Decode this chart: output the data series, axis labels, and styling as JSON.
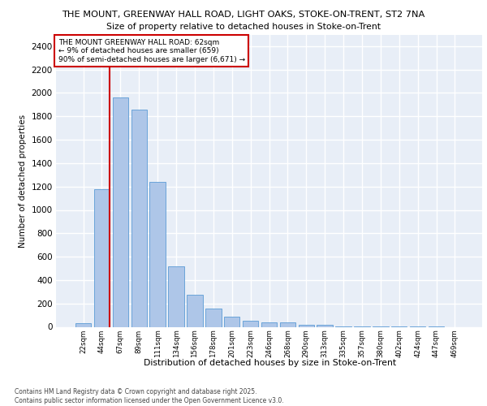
{
  "title1": "THE MOUNT, GREENWAY HALL ROAD, LIGHT OAKS, STOKE-ON-TRENT, ST2 7NA",
  "title2": "Size of property relative to detached houses in Stoke-on-Trent",
  "xlabel": "Distribution of detached houses by size in Stoke-on-Trent",
  "ylabel": "Number of detached properties",
  "bar_labels": [
    "22sqm",
    "44sqm",
    "67sqm",
    "89sqm",
    "111sqm",
    "134sqm",
    "156sqm",
    "178sqm",
    "201sqm",
    "223sqm",
    "246sqm",
    "268sqm",
    "290sqm",
    "313sqm",
    "335sqm",
    "357sqm",
    "380sqm",
    "402sqm",
    "424sqm",
    "447sqm",
    "469sqm"
  ],
  "bar_values": [
    30,
    1175,
    1960,
    1855,
    1240,
    515,
    275,
    155,
    90,
    50,
    40,
    35,
    20,
    15,
    5,
    3,
    2,
    1,
    1,
    1,
    0
  ],
  "bar_color": "#aec6e8",
  "bar_edgecolor": "#5b9bd5",
  "bg_color": "#e8eef7",
  "grid_color": "#ffffff",
  "vline_x_idx": 1,
  "vline_color": "#cc0000",
  "annotation_title": "THE MOUNT GREENWAY HALL ROAD: 62sqm",
  "annotation_line1": "← 9% of detached houses are smaller (659)",
  "annotation_line2": "90% of semi-detached houses are larger (6,671) →",
  "annotation_box_edgecolor": "#cc0000",
  "ylim": [
    0,
    2500
  ],
  "yticks": [
    0,
    200,
    400,
    600,
    800,
    1000,
    1200,
    1400,
    1600,
    1800,
    2000,
    2200,
    2400
  ],
  "footer1": "Contains HM Land Registry data © Crown copyright and database right 2025.",
  "footer2": "Contains public sector information licensed under the Open Government Licence v3.0."
}
